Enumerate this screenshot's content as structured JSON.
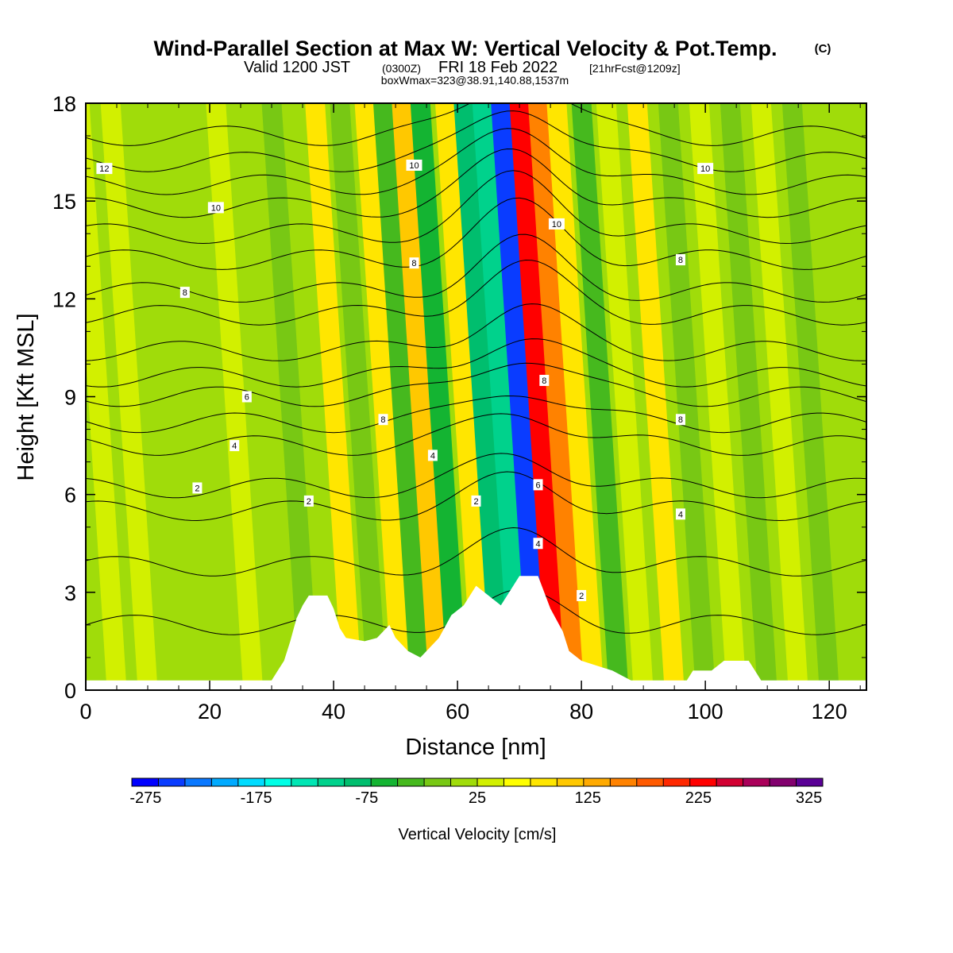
{
  "title": {
    "main": "Wind-Parallel Section at Max W: Vertical Velocity & Pot.Temp.",
    "copyright": "(C)",
    "valid_prefix": "Valid 1200 JST",
    "valid_utc": "(0300Z)",
    "valid_date": "FRI 18 Feb 2022",
    "forecast": "[21hrFcst@1209z]",
    "box_info": "boxWmax=323@38.91,140.88,1537m"
  },
  "chart_data": {
    "type": "heatmap",
    "xlabel": "Distance [nm]",
    "ylabel": "Height [Kft MSL]",
    "xlim": [
      0,
      126
    ],
    "ylim": [
      0,
      18
    ],
    "xticks": [
      0,
      20,
      40,
      60,
      80,
      100,
      120
    ],
    "yticks": [
      0,
      3,
      6,
      9,
      12,
      15,
      18
    ],
    "fill_variable": "Vertical Velocity [cm/s]",
    "contour_variable": "Potential Temperature",
    "colorbar": {
      "label": "Vertical Velocity [cm/s]",
      "tick_labels": [
        "-275",
        "-175",
        "-75",
        "25",
        "125",
        "225",
        "325"
      ],
      "tick_values": [
        -275,
        -175,
        -75,
        25,
        125,
        225,
        325
      ],
      "levels": [
        -300,
        -275,
        -250,
        -225,
        -200,
        -175,
        -150,
        -125,
        -100,
        -75,
        -50,
        -25,
        0,
        25,
        50,
        75,
        100,
        125,
        150,
        175,
        200,
        225,
        250,
        275,
        300,
        325
      ],
      "colors": [
        "#0000ff",
        "#0a3cff",
        "#0a78ff",
        "#00aaff",
        "#00dcff",
        "#00ffe6",
        "#00e6b4",
        "#00d28c",
        "#00be6e",
        "#14b432",
        "#46b91e",
        "#78c814",
        "#a0dc0a",
        "#d2f000",
        "#ffff00",
        "#ffe600",
        "#ffc800",
        "#ffaa00",
        "#ff8200",
        "#ff5a00",
        "#ff2800",
        "#ff0000",
        "#d20032",
        "#aa005a",
        "#82006e",
        "#5a0096"
      ]
    },
    "vertical_velocity_bands": [
      {
        "x": 5,
        "w": 86,
        "c": "#d2f000"
      },
      {
        "x": 10,
        "w": 82,
        "c": "#d2f000"
      },
      {
        "x": 16,
        "w": 78,
        "c": "#a0dc0a"
      },
      {
        "x": 22,
        "w": 80,
        "c": "#a0dc0a"
      },
      {
        "x": 27,
        "w": 75,
        "c": "#d2f000"
      },
      {
        "x": 31,
        "w": 70,
        "c": "#a0dc0a"
      },
      {
        "x": 36,
        "w": 72,
        "c": "#78c814"
      },
      {
        "x": 40,
        "w": 70,
        "c": "#a0dc0a"
      },
      {
        "x": 43,
        "w": 60,
        "c": "#ffe600"
      },
      {
        "x": 47,
        "w": 55,
        "c": "#78c814"
      },
      {
        "x": 51,
        "w": 50,
        "c": "#ffe600"
      },
      {
        "x": 54,
        "w": -40,
        "c": "#46b91e"
      },
      {
        "x": 57,
        "w": 30,
        "c": "#ffc800"
      },
      {
        "x": 60,
        "w": -50,
        "c": "#14b432"
      },
      {
        "x": 64,
        "w": 20,
        "c": "#ffe600"
      },
      {
        "x": 67,
        "w": -80,
        "c": "#00be6e"
      },
      {
        "x": 70,
        "w": -120,
        "c": "#00d28c"
      },
      {
        "x": 73,
        "w": -240,
        "c": "#0a3cff"
      },
      {
        "x": 76,
        "w": 240,
        "c": "#ff0000"
      },
      {
        "x": 79,
        "w": 120,
        "c": "#ff8200"
      },
      {
        "x": 82,
        "w": 40,
        "c": "#ffe600"
      },
      {
        "x": 86,
        "w": -30,
        "c": "#46b91e"
      },
      {
        "x": 90,
        "w": 35,
        "c": "#d2f000"
      },
      {
        "x": 95,
        "w": 50,
        "c": "#ffe600"
      },
      {
        "x": 100,
        "w": -20,
        "c": "#78c814"
      },
      {
        "x": 105,
        "w": 40,
        "c": "#d2f000"
      },
      {
        "x": 110,
        "w": -25,
        "c": "#78c814"
      },
      {
        "x": 115,
        "w": 30,
        "c": "#d2f000"
      },
      {
        "x": 120,
        "w": -20,
        "c": "#78c814"
      }
    ],
    "terrain_profile": [
      {
        "x": 0,
        "h": 0.3
      },
      {
        "x": 30,
        "h": 0.3
      },
      {
        "x": 31,
        "h": 0.6
      },
      {
        "x": 32,
        "h": 0.9
      },
      {
        "x": 33,
        "h": 1.5
      },
      {
        "x": 34,
        "h": 2.2
      },
      {
        "x": 35,
        "h": 2.6
      },
      {
        "x": 36,
        "h": 2.9
      },
      {
        "x": 39,
        "h": 2.9
      },
      {
        "x": 40,
        "h": 2.5
      },
      {
        "x": 41,
        "h": 1.9
      },
      {
        "x": 42,
        "h": 1.6
      },
      {
        "x": 45,
        "h": 1.5
      },
      {
        "x": 47,
        "h": 1.6
      },
      {
        "x": 49,
        "h": 2.0
      },
      {
        "x": 50,
        "h": 1.6
      },
      {
        "x": 52,
        "h": 1.2
      },
      {
        "x": 54,
        "h": 1.0
      },
      {
        "x": 55,
        "h": 1.2
      },
      {
        "x": 57,
        "h": 1.6
      },
      {
        "x": 59,
        "h": 2.3
      },
      {
        "x": 61,
        "h": 2.6
      },
      {
        "x": 63,
        "h": 3.2
      },
      {
        "x": 65,
        "h": 2.9
      },
      {
        "x": 67,
        "h": 2.6
      },
      {
        "x": 69,
        "h": 3.2
      },
      {
        "x": 70,
        "h": 3.5
      },
      {
        "x": 73,
        "h": 3.5
      },
      {
        "x": 75,
        "h": 2.5
      },
      {
        "x": 77,
        "h": 1.8
      },
      {
        "x": 78,
        "h": 1.2
      },
      {
        "x": 80,
        "h": 0.9
      },
      {
        "x": 85,
        "h": 0.6
      },
      {
        "x": 88,
        "h": 0.3
      },
      {
        "x": 97,
        "h": 0.3
      },
      {
        "x": 98,
        "h": 0.6
      },
      {
        "x": 101,
        "h": 0.6
      },
      {
        "x": 103,
        "h": 0.9
      },
      {
        "x": 107,
        "h": 0.9
      },
      {
        "x": 109,
        "h": 0.3
      },
      {
        "x": 126,
        "h": 0.3
      }
    ],
    "theta_contours": [
      {
        "label": "2",
        "base": 2.0,
        "amp": 0.8
      },
      {
        "label": "2",
        "base": 3.8,
        "amp": 0.9
      },
      {
        "label": "2",
        "base": 5.5,
        "amp": 1.0
      },
      {
        "label": "2",
        "base": 6.2,
        "amp": 1.0
      },
      {
        "label": "4",
        "base": 7.5,
        "amp": 1.1
      },
      {
        "label": "4",
        "base": 8.2,
        "amp": 1.1
      },
      {
        "label": "6",
        "base": 9.0,
        "amp": 1.3
      },
      {
        "label": "6",
        "base": 9.6,
        "amp": 1.3
      },
      {
        "label": "6",
        "base": 10.4,
        "amp": 1.4
      },
      {
        "label": "8",
        "base": 11.5,
        "amp": 1.5
      },
      {
        "label": "8",
        "base": 12.2,
        "amp": 1.5
      },
      {
        "label": "8",
        "base": 13.2,
        "amp": 1.6
      },
      {
        "label": "10",
        "base": 14.0,
        "amp": 1.7
      },
      {
        "label": "10",
        "base": 14.8,
        "amp": 1.7
      },
      {
        "label": "10",
        "base": 15.5,
        "amp": 1.8
      },
      {
        "label": "12",
        "base": 16.2,
        "amp": 1.8
      },
      {
        "label": "12",
        "base": 17.0,
        "amp": 1.9
      }
    ],
    "contour_labels": [
      {
        "text": "12",
        "x": 3,
        "y": 16.0
      },
      {
        "text": "10",
        "x": 21,
        "y": 14.8
      },
      {
        "text": "10",
        "x": 53,
        "y": 16.1
      },
      {
        "text": "10",
        "x": 100,
        "y": 16.0
      },
      {
        "text": "10",
        "x": 76,
        "y": 14.3
      },
      {
        "text": "8",
        "x": 16,
        "y": 12.2
      },
      {
        "text": "8",
        "x": 53,
        "y": 13.1
      },
      {
        "text": "8",
        "x": 96,
        "y": 13.2
      },
      {
        "text": "8",
        "x": 74,
        "y": 9.5
      },
      {
        "text": "8",
        "x": 48,
        "y": 8.3
      },
      {
        "text": "8",
        "x": 96,
        "y": 8.3
      },
      {
        "text": "6",
        "x": 26,
        "y": 9.0
      },
      {
        "text": "6",
        "x": 73,
        "y": 6.3
      },
      {
        "text": "4",
        "x": 24,
        "y": 7.5
      },
      {
        "text": "4",
        "x": 56,
        "y": 7.2
      },
      {
        "text": "4",
        "x": 73,
        "y": 4.5
      },
      {
        "text": "4",
        "x": 96,
        "y": 5.4
      },
      {
        "text": "2",
        "x": 18,
        "y": 6.2
      },
      {
        "text": "2",
        "x": 36,
        "y": 5.8
      },
      {
        "text": "2",
        "x": 63,
        "y": 5.8
      },
      {
        "text": "2",
        "x": 80,
        "y": 2.9
      }
    ]
  }
}
